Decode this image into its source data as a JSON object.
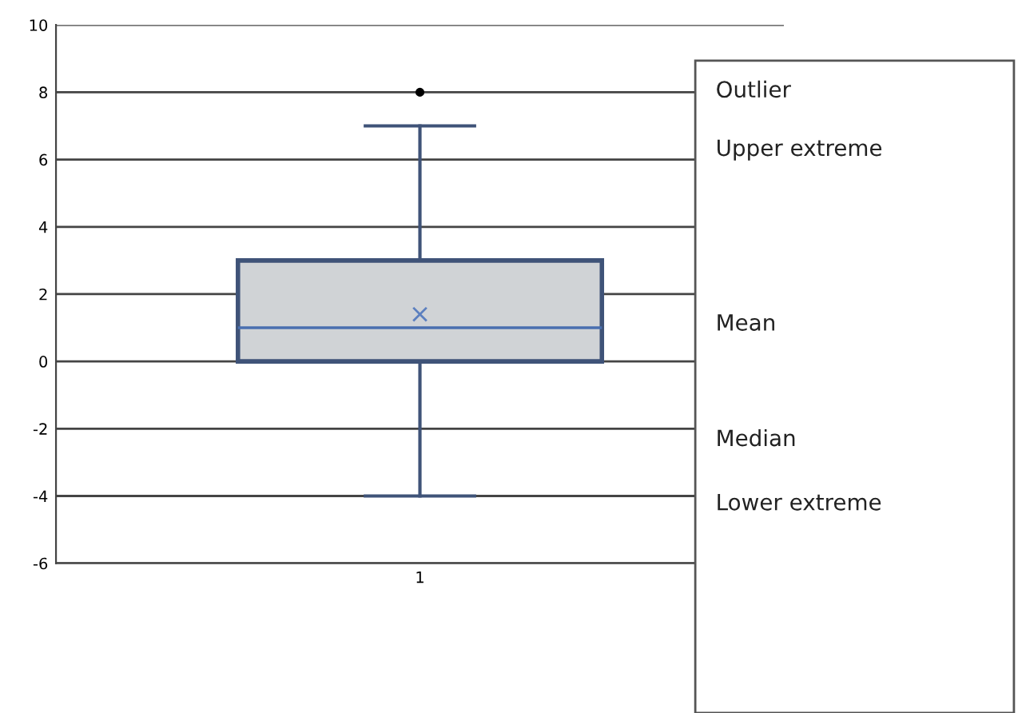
{
  "chart_data": {
    "type": "box",
    "categories": [
      "1"
    ],
    "boxes": [
      {
        "low": -4,
        "q1": 0,
        "median": 1,
        "q3": 3,
        "high": 7,
        "mean": 1.4,
        "outliers": [
          8
        ]
      }
    ],
    "color": "#d0d3d6",
    "ylim": [
      -6,
      10
    ],
    "yticks": [
      -6,
      -4,
      -2,
      0,
      2,
      4,
      6,
      8,
      10
    ],
    "grid": "y",
    "annotations": [
      "Outlier",
      "Upper extreme",
      "Mean",
      "Median",
      "Lower extreme"
    ]
  }
}
